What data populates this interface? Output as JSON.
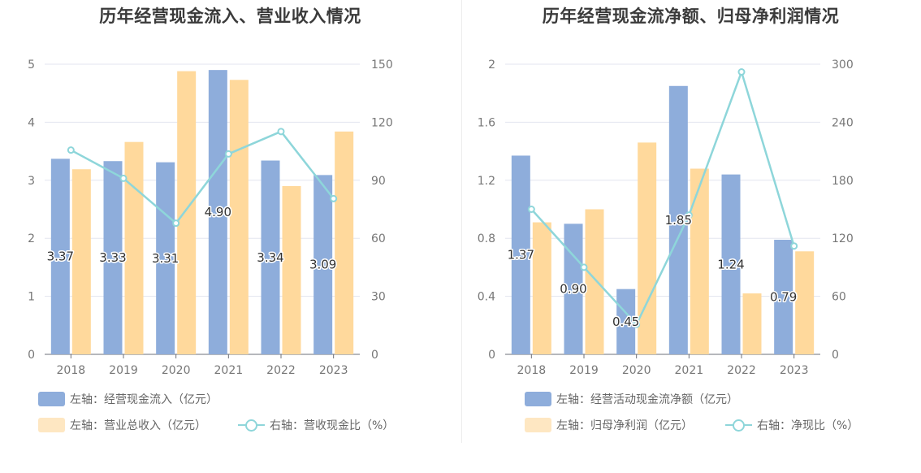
{
  "chart_data": [
    {
      "type": "bar",
      "title": "历年经营现金流入、营业收入情况",
      "categories": [
        "2018",
        "2019",
        "2020",
        "2021",
        "2022",
        "2023"
      ],
      "left_axis": {
        "min": 0,
        "max": 5,
        "ticks": [
          "0",
          "1",
          "2",
          "3",
          "4",
          "5"
        ]
      },
      "right_axis": {
        "min": 0,
        "max": 150,
        "ticks": [
          "0",
          "30",
          "60",
          "90",
          "120",
          "150"
        ]
      },
      "series": [
        {
          "name": "左轴：经营现金流入（亿元）",
          "type": "bar",
          "axis": "left",
          "color": "#8eaddb",
          "values": [
            3.37,
            3.33,
            3.31,
            4.9,
            3.34,
            3.09
          ],
          "labels": [
            "3.37",
            "3.33",
            "3.31",
            "4.90",
            "3.34",
            "3.09"
          ]
        },
        {
          "name": "左轴：营业总收入（亿元）",
          "type": "bar",
          "axis": "left",
          "color": "#ffd99c",
          "values": [
            3.19,
            3.66,
            4.88,
            4.73,
            2.9,
            3.84
          ]
        },
        {
          "name": "右轴：营收现金比（%）",
          "type": "line",
          "axis": "right",
          "color": "#8ed6da",
          "values": [
            105.6,
            91.0,
            67.8,
            103.6,
            115.2,
            80.5
          ]
        }
      ],
      "grid": true,
      "legend_position": "bottom"
    },
    {
      "type": "bar",
      "title": "历年经营现金流净额、归母净利润情况",
      "categories": [
        "2018",
        "2019",
        "2020",
        "2021",
        "2022",
        "2023"
      ],
      "left_axis": {
        "min": 0,
        "max": 2,
        "ticks": [
          "0",
          "0.4",
          "0.8",
          "1.2",
          "1.6",
          "2"
        ]
      },
      "right_axis": {
        "min": 0,
        "max": 300,
        "ticks": [
          "0",
          "60",
          "120",
          "180",
          "240",
          "300"
        ]
      },
      "series": [
        {
          "name": "左轴：经营活动现金流净额（亿元）",
          "type": "bar",
          "axis": "left",
          "color": "#8eaddb",
          "values": [
            1.37,
            0.9,
            0.45,
            1.85,
            1.24,
            0.79
          ],
          "labels": [
            "1.37",
            "0.90",
            "0.45",
            "1.85",
            "1.24",
            "0.79"
          ]
        },
        {
          "name": "左轴：归母净利润（亿元）",
          "type": "bar",
          "axis": "left",
          "color": "#ffd99c",
          "values": [
            0.91,
            1.0,
            1.46,
            1.28,
            0.42,
            0.71
          ]
        },
        {
          "name": "右轴：净现比（%）",
          "type": "line",
          "axis": "right",
          "color": "#8ed6da",
          "values": [
            150.0,
            90.0,
            31.0,
            144.0,
            292.0,
            112.0
          ]
        }
      ],
      "grid": true,
      "legend_position": "bottom"
    }
  ]
}
